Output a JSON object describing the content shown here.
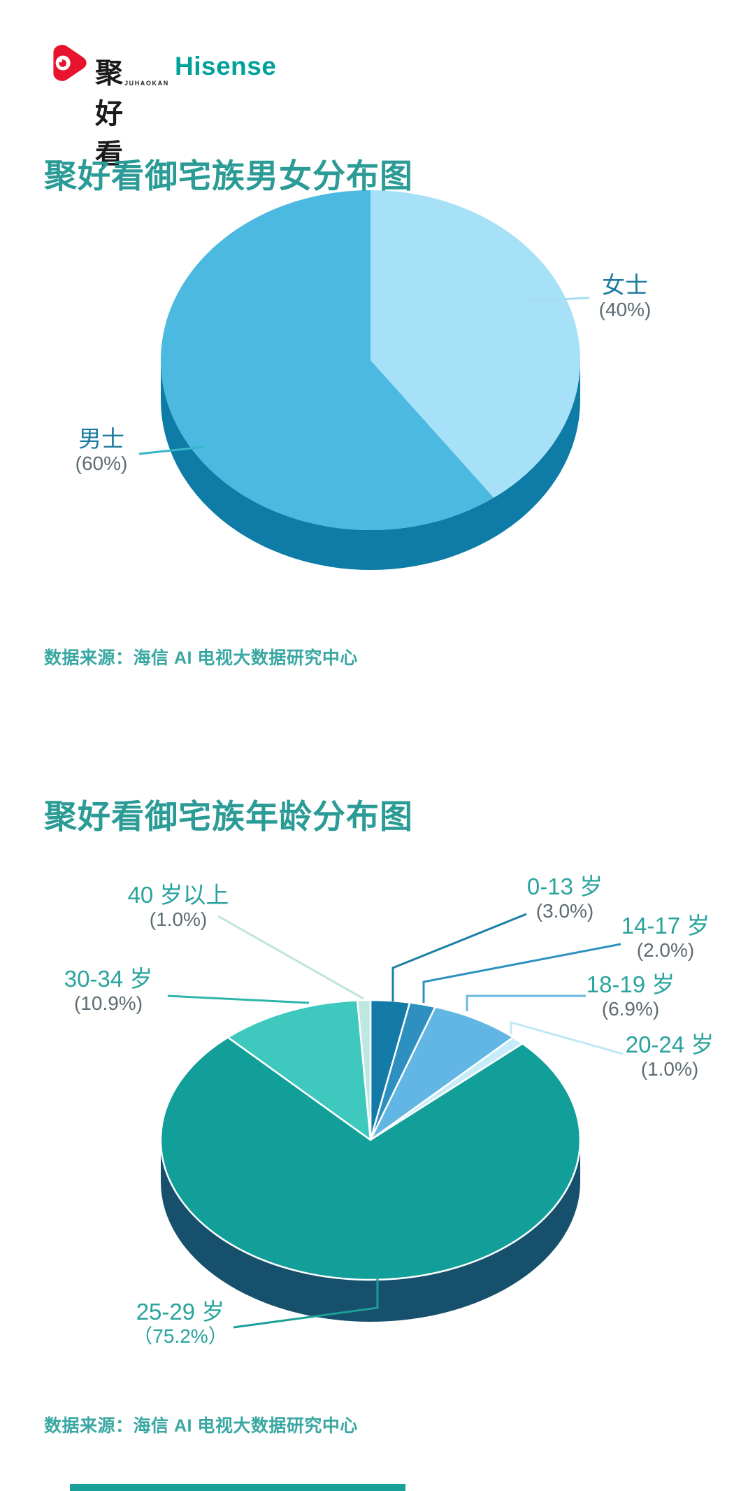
{
  "header": {
    "logo_cn": "聚好看",
    "logo_sub": "JUHAOKAN",
    "brand": "Hisense",
    "colors": {
      "logo_red": "#e8132d",
      "brand_teal": "#00a19b",
      "logo_text": "#1b1b1b"
    }
  },
  "theme": {
    "title_color": "#2b9b96",
    "source_color": "#39a7a2",
    "pct_color": "#5d6b73",
    "background": "#ffffff",
    "bottom_bar_color": "#19a099"
  },
  "chart_data": [
    {
      "type": "pie",
      "title": "聚好看御宅族男女分布图",
      "source": "数据来源：海信 AI 电视大数据研究中心",
      "categories": [
        "女士",
        "男士"
      ],
      "values": [
        40,
        60
      ],
      "pct_labels": [
        "(40%)",
        "(60%)"
      ],
      "slice_colors": [
        "#a7e1f8",
        "#4cb9e1"
      ],
      "base_color": "#0e7ca6",
      "label_color": "#1d7ba0",
      "leader_colors": [
        "#a5ddf3",
        "#35b5c9"
      ],
      "legend_position": "none",
      "start_angle_deg": 0,
      "direction": "clockwise-from-top",
      "style": "3d-pie"
    },
    {
      "type": "pie",
      "title": "聚好看御宅族年龄分布图",
      "source": "数据来源：海信 AI 电视大数据研究中心",
      "categories": [
        "0-13 岁",
        "14-17 岁",
        "18-19 岁",
        "20-24 岁",
        "25-29 岁",
        "30-34 岁",
        "40 岁以上"
      ],
      "values": [
        3.0,
        2.0,
        6.9,
        1.0,
        75.2,
        10.9,
        1.0
      ],
      "pct_labels": [
        "(3.0%)",
        "(2.0%)",
        "(6.9%)",
        "(1.0%)",
        "（75.2%）",
        "(10.9%)",
        "(1.0%)"
      ],
      "slice_colors": [
        "#147ba8",
        "#2e90c1",
        "#62b6e3",
        "#c6ecfa",
        "#129e99",
        "#3fc9be",
        "#bfe7e1"
      ],
      "base_color": "#17506c",
      "label_color": "#2aa39d",
      "pct_color_overrides": {
        "4": "#2aa39d"
      },
      "leader_colors": [
        "#1b7fa6",
        "#2e91c0",
        "#69b9e2",
        "#bfe8f7",
        "#1b9f96",
        "#2fb5ab",
        "#bfe4de"
      ],
      "legend_position": "none",
      "start_angle_deg": 0,
      "direction": "clockwise-from-top",
      "style": "3d-pie"
    }
  ]
}
